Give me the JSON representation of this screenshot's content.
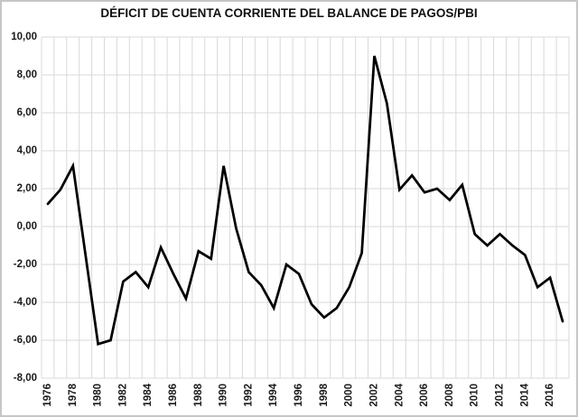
{
  "chart_data": {
    "type": "line",
    "title": "DÉFICIT DE CUENTA CORRIENTE DEL BALANCE DE PAGOS/PBI",
    "xlabel": "",
    "ylabel": "",
    "x": [
      1976,
      1977,
      1978,
      1979,
      1980,
      1981,
      1982,
      1983,
      1984,
      1985,
      1986,
      1987,
      1988,
      1989,
      1990,
      1991,
      1992,
      1993,
      1994,
      1995,
      1996,
      1997,
      1998,
      1999,
      2000,
      2001,
      2002,
      2003,
      2004,
      2005,
      2006,
      2007,
      2008,
      2009,
      2010,
      2011,
      2012,
      2013,
      2014,
      2015,
      2016,
      2017
    ],
    "values": [
      1.2,
      1.95,
      3.2,
      -1.5,
      -6.2,
      -6.0,
      -2.9,
      -2.4,
      -3.2,
      -1.1,
      -2.5,
      -3.8,
      -1.3,
      -1.7,
      3.2,
      -0.1,
      -2.4,
      -3.1,
      -4.3,
      -2.0,
      -2.5,
      -4.1,
      -4.8,
      -4.3,
      -3.2,
      -1.4,
      9.0,
      6.5,
      1.95,
      2.7,
      1.8,
      2.0,
      1.4,
      2.2,
      -0.4,
      -1.0,
      -0.4,
      -1.0,
      -1.5,
      -3.2,
      -2.7,
      -5.0
    ],
    "ylim": [
      -8,
      10
    ],
    "ytick_step": 2,
    "ytick_labels": [
      "10,00",
      "8,00",
      "6,00",
      "4,00",
      "2,00",
      "0,00",
      "-2,00",
      "-4,00",
      "-6,00",
      "-8,00"
    ],
    "xtick_labels": [
      "1976",
      "1978",
      "1980",
      "1982",
      "1984",
      "1986",
      "1988",
      "1990",
      "1992",
      "1994",
      "1996",
      "1998",
      "2000",
      "2002",
      "2004",
      "2006",
      "2008",
      "2010",
      "2012",
      "2014",
      "2016"
    ],
    "grid": true,
    "legend": "none",
    "line_color": "#000000",
    "grid_color": "#d9d9d9",
    "text_color": "#1a1a1a",
    "background_color": "#ffffff"
  }
}
